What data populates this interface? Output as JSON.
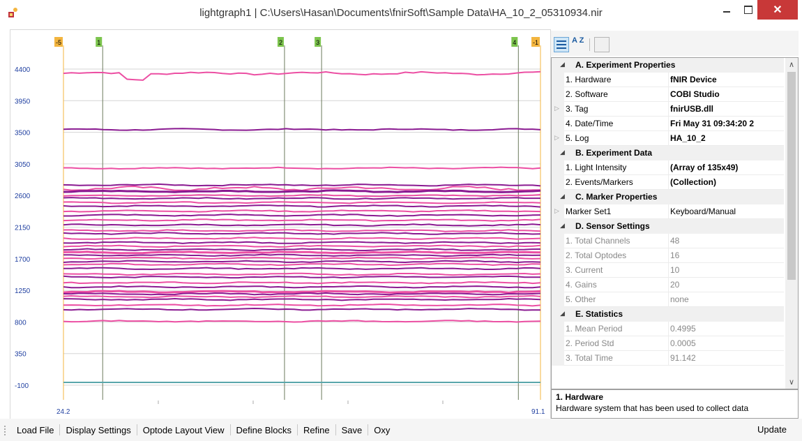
{
  "window": {
    "title": "lightgraph1 | C:\\Users\\Hasan\\Documents\\fnirSoft\\Sample Data\\HA_10_2_05310934.nir",
    "close_glyph": "✕"
  },
  "chart_data": {
    "type": "line",
    "ylim": [
      -100,
      4400
    ],
    "yticks": [
      4400,
      3950,
      3500,
      3050,
      2600,
      2150,
      1700,
      1250,
      800,
      350,
      -100
    ],
    "x_start_label": "24.2",
    "x_end_label": "91.1",
    "xlim": [
      24.2,
      91.1
    ],
    "markers": [
      {
        "label": "-5",
        "x": 24.2,
        "color": "#f3b53f"
      },
      {
        "label": "1",
        "x": 29.7,
        "color": "#7cc44d"
      },
      {
        "label": "2",
        "x": 55.2,
        "color": "#7cc44d"
      },
      {
        "label": "3",
        "x": 60.4,
        "color": "#7cc44d"
      },
      {
        "label": "4",
        "x": 88.0,
        "color": "#7cc44d"
      },
      {
        "label": "-1",
        "x": 91.1,
        "color": "#f3b53f"
      }
    ],
    "colors": {
      "pink": "#ec4fa3",
      "purple": "#8a1a91",
      "flat": "#5aa6ab"
    },
    "series_levels": [
      4340,
      3540,
      2990,
      2750,
      2700,
      2660,
      2600,
      2560,
      2500,
      2450,
      2380,
      2320,
      2250,
      2180,
      2100,
      2060,
      1990,
      1930,
      1880,
      1830,
      1790,
      1750,
      1710,
      1660,
      1620,
      1560,
      1480,
      1440,
      1360,
      1300,
      1230,
      1200,
      1160,
      1120,
      1040,
      980,
      810,
      -60
    ]
  },
  "toolbar": {
    "categorized_icon": "categorized-icon",
    "alphabetical_icon": "alphabetical-icon",
    "alpha_label": "A Z",
    "property_pages_icon": "property-pages-icon"
  },
  "properties": {
    "scroll_up_glyph": "∧",
    "scroll_down_glyph": "∨",
    "sections": [
      {
        "title": "A. Experiment Properties",
        "rows": [
          {
            "name": "1. Hardware",
            "value": "fNIR Device"
          },
          {
            "name": "2. Software",
            "value": "COBI Studio"
          },
          {
            "name": "3. Tag",
            "value": "fnirUSB.dll"
          },
          {
            "name": "4. Date/Time",
            "value": "Fri May 31 09:34:20 2"
          },
          {
            "name": "5. Log",
            "value": "HA_10_2"
          }
        ]
      },
      {
        "title": "B. Experiment Data",
        "rows": [
          {
            "name": "1. Light Intensity",
            "value": "(Array of 135x49)"
          },
          {
            "name": "2. Events/Markers",
            "value": "(Collection)"
          }
        ]
      },
      {
        "title": "C. Marker Properties",
        "rows": [
          {
            "name": "Marker Set1",
            "value": "Keyboard/Manual"
          }
        ]
      },
      {
        "title": "D. Sensor Settings",
        "rows": [
          {
            "name": "1. Total Channels",
            "value": "48"
          },
          {
            "name": "2. Total Optodes",
            "value": "16"
          },
          {
            "name": "3. Current",
            "value": "10"
          },
          {
            "name": "4. Gains",
            "value": "20"
          },
          {
            "name": "5. Other",
            "value": "none"
          }
        ]
      },
      {
        "title": "E. Statistics",
        "rows": [
          {
            "name": "1. Mean Period",
            "value": "0.4995"
          },
          {
            "name": "2. Period Std",
            "value": "0.0005"
          },
          {
            "name": "3. Total Time",
            "value": "91.142"
          }
        ]
      }
    ]
  },
  "help": {
    "title": "1. Hardware",
    "description": "Hardware system that has been used to collect data"
  },
  "bottom_menu": {
    "items": [
      "Load File",
      "Display Settings",
      "Optode Layout View",
      "Define Blocks",
      "Refine",
      "Save",
      "Oxy"
    ],
    "update": "Update"
  }
}
